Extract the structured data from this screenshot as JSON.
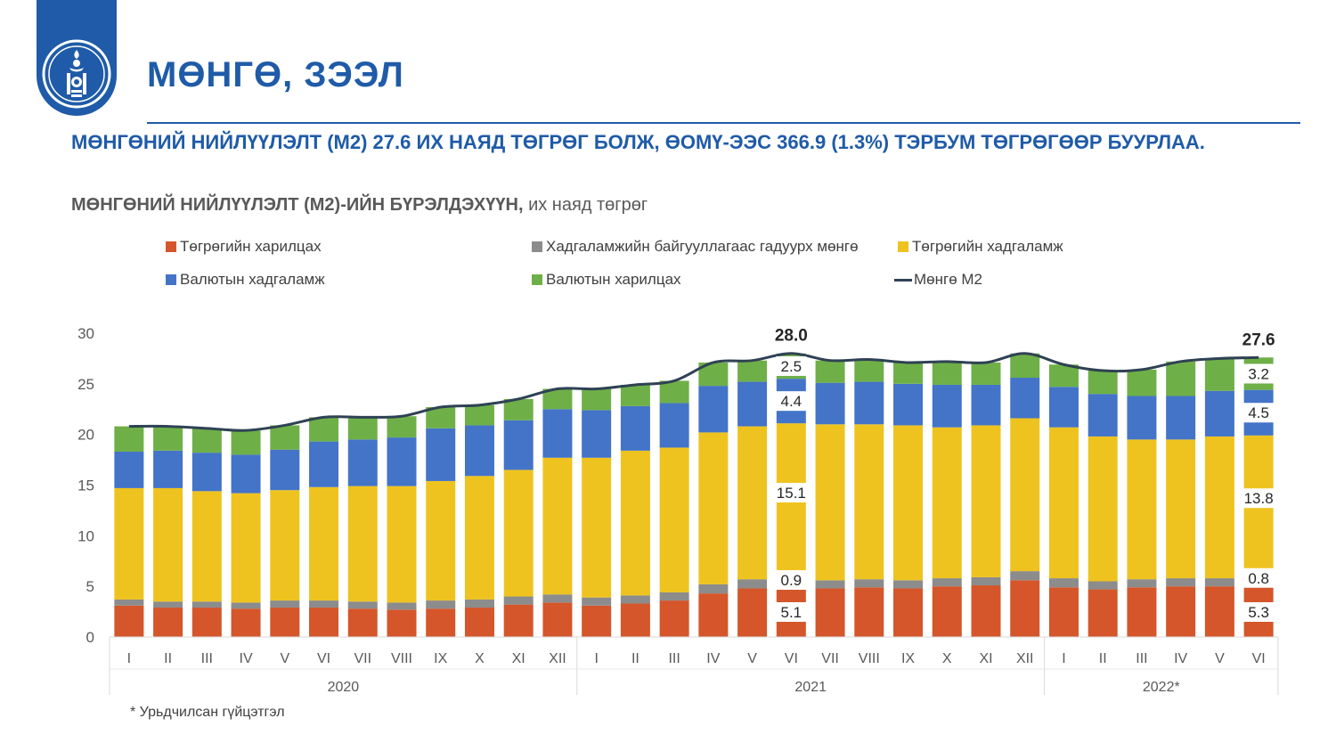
{
  "header": {
    "title": "МӨНГӨ, ЗЭЭЛ",
    "headline": "МӨНГӨНИЙ НИЙЛҮҮЛЭЛТ (М2) 27.6 ИХ НАЯД ТӨГРӨГ БОЛЖ, ӨОМҮ-ЭЭС 366.9 (1.3%) ТЭРБУМ ТӨГРӨГӨӨР БУУРЛАА.",
    "logo_icon": "soyombo-emblem-icon"
  },
  "footnote": "* Урьдчилсан гүйцэтгэл",
  "chart_data": {
    "type": "bar",
    "stacked": true,
    "title": "МӨНГӨНИЙ НИЙЛҮҮЛЭЛТ (М2)-ИЙН БҮРЭЛДЭХҮҮН,",
    "subtitle": "их наяд төгрөг",
    "ylim": [
      0,
      30
    ],
    "yticks": [
      0,
      5,
      10,
      15,
      20,
      25,
      30
    ],
    "grid": false,
    "legend_position": "top",
    "categories": [
      "I",
      "II",
      "III",
      "IV",
      "V",
      "VI",
      "VII",
      "VIII",
      "IX",
      "X",
      "XI",
      "XII",
      "I",
      "II",
      "III",
      "IV",
      "V",
      "VI",
      "VII",
      "VIII",
      "IX",
      "X",
      "XI",
      "XII",
      "I",
      "II",
      "III",
      "IV",
      "V",
      "VI"
    ],
    "year_groups": [
      {
        "label": "2020",
        "count": 12
      },
      {
        "label": "2021",
        "count": 12
      },
      {
        "label": "2022*",
        "count": 6
      }
    ],
    "series": [
      {
        "name": "Төгрөгийн харилцах",
        "color": "#d4562a",
        "values": [
          3.1,
          2.9,
          2.9,
          2.8,
          2.9,
          2.9,
          2.8,
          2.7,
          2.8,
          2.9,
          3.2,
          3.4,
          3.1,
          3.3,
          3.6,
          4.3,
          4.8,
          5.1,
          4.8,
          4.9,
          4.8,
          5.0,
          5.1,
          5.6,
          4.9,
          4.7,
          4.9,
          5.0,
          5.0,
          5.3
        ]
      },
      {
        "name": "Хадгаламжийн байгууллагаас гадуурх мөнгө",
        "color": "#8c8c8c",
        "values": [
          0.6,
          0.6,
          0.6,
          0.6,
          0.7,
          0.7,
          0.7,
          0.7,
          0.8,
          0.8,
          0.8,
          0.8,
          0.8,
          0.8,
          0.8,
          0.9,
          0.9,
          0.9,
          0.8,
          0.8,
          0.8,
          0.8,
          0.8,
          0.9,
          0.9,
          0.8,
          0.8,
          0.8,
          0.8,
          0.8
        ]
      },
      {
        "name": "Төгрөгийн хадгаламж",
        "color": "#efc31f",
        "values": [
          11.0,
          11.2,
          10.9,
          10.8,
          10.9,
          11.2,
          11.4,
          11.5,
          11.8,
          12.2,
          12.5,
          13.5,
          13.8,
          14.3,
          14.3,
          15.0,
          15.1,
          15.1,
          15.4,
          15.3,
          15.3,
          14.9,
          15.0,
          15.1,
          14.9,
          14.3,
          13.8,
          13.7,
          14.0,
          13.8
        ]
      },
      {
        "name": "Валютын хадгаламж",
        "color": "#4374c8",
        "values": [
          3.6,
          3.7,
          3.8,
          3.8,
          4.0,
          4.5,
          4.6,
          4.8,
          5.2,
          5.0,
          4.9,
          4.8,
          4.7,
          4.4,
          4.4,
          4.6,
          4.4,
          4.4,
          4.1,
          4.2,
          4.1,
          4.2,
          4.0,
          4.0,
          4.0,
          4.2,
          4.3,
          4.3,
          4.5,
          4.5
        ]
      },
      {
        "name": "Валютын харилцах",
        "color": "#6faf48",
        "values": [
          2.5,
          2.4,
          2.4,
          2.4,
          2.4,
          2.4,
          2.2,
          2.1,
          2.1,
          2.0,
          2.1,
          2.0,
          2.1,
          2.1,
          2.2,
          2.3,
          2.1,
          2.5,
          2.2,
          2.2,
          2.1,
          2.3,
          2.2,
          2.4,
          2.2,
          2.3,
          2.6,
          3.4,
          3.2,
          3.2
        ]
      }
    ],
    "line": {
      "name": "Мөнгө М2",
      "color": "#2f4254",
      "values": [
        20.8,
        20.8,
        20.6,
        20.4,
        20.9,
        21.7,
        21.7,
        21.8,
        22.7,
        22.9,
        23.5,
        24.5,
        24.5,
        24.9,
        25.3,
        27.1,
        27.3,
        28.0,
        27.3,
        27.4,
        27.1,
        27.2,
        27.1,
        28.0,
        26.9,
        26.3,
        26.4,
        27.2,
        27.5,
        27.6
      ]
    },
    "annotations": [
      {
        "category_index": 17,
        "values": [
          "5.1",
          "0.9",
          "15.1",
          "4.4",
          "2.5"
        ],
        "total": "28.0"
      },
      {
        "category_index": 29,
        "values": [
          "5.3",
          "0.8",
          "13.8",
          "4.5",
          "3.2"
        ],
        "total": "27.6"
      }
    ]
  }
}
